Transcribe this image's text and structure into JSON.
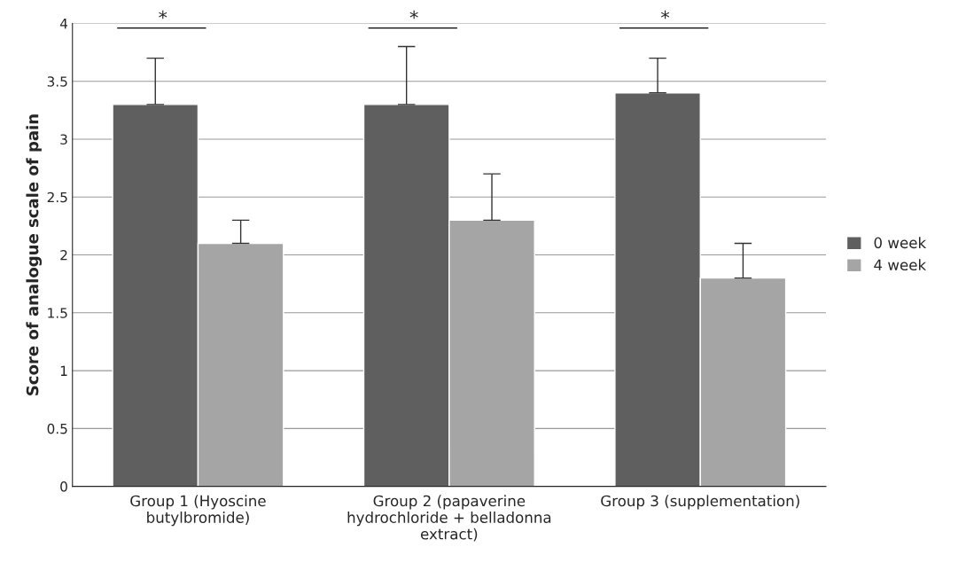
{
  "chart_data": {
    "type": "bar",
    "ylabel": "Score of analogue scale of pain",
    "categories": [
      "Group 1 (Hyoscine butylbromide)",
      "Group 2 (papaverine hydrochloride + belladonna extract)",
      "Group 3 (supplementation)"
    ],
    "series": [
      {
        "name": "0 week",
        "color": "#5f5f5f",
        "values": [
          3.3,
          3.3,
          3.4
        ],
        "errors": [
          [
            3.3,
            3.7
          ],
          [
            3.3,
            3.8
          ],
          [
            3.4,
            3.7
          ]
        ]
      },
      {
        "name": "4 week",
        "color": "#a5a5a5",
        "values": [
          2.1,
          2.3,
          1.8
        ],
        "errors": [
          [
            2.1,
            2.3
          ],
          [
            2.3,
            2.7
          ],
          [
            1.8,
            2.1
          ]
        ]
      }
    ],
    "annotations": [
      "*",
      "*",
      "*"
    ],
    "ylim": [
      0,
      4
    ],
    "yticks": [
      0,
      0.5,
      1,
      1.5,
      2,
      2.5,
      3,
      3.5,
      4
    ],
    "grid": "y",
    "legend": "right"
  }
}
